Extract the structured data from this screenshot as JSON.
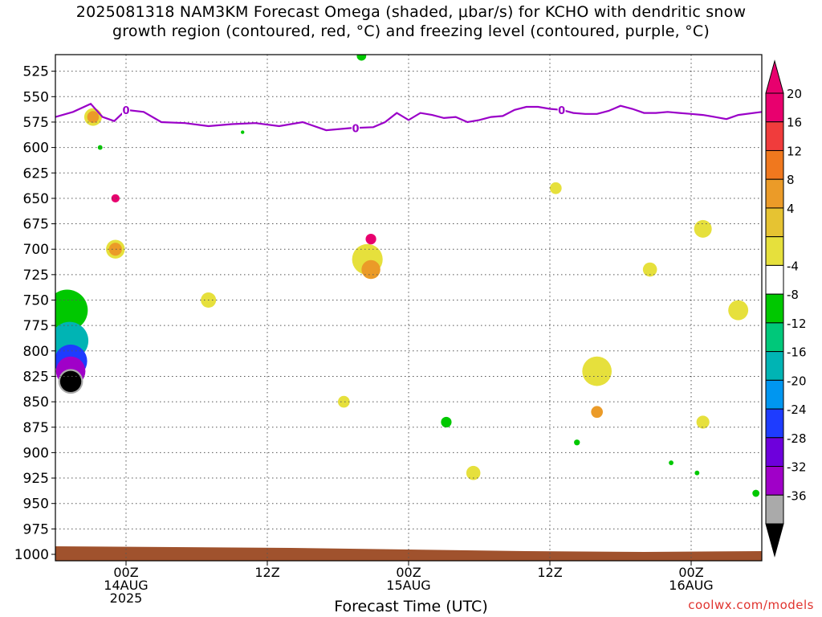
{
  "title_line1": "2025081318 NAM3KM Forecast Omega (shaded, μbar/s) for KCHO with dendritic snow",
  "title_line2": "growth region (contoured, red, °C) and freezing level (contoured, purple, °C)",
  "credit": "coolwx.com/models",
  "chart_data": {
    "type": "heatmap",
    "xlabel": "Forecast Time (UTC)",
    "x_ticks": [
      {
        "hour": 6,
        "lines": [
          "00Z",
          "14AUG",
          "2025"
        ]
      },
      {
        "hour": 18,
        "lines": [
          "12Z"
        ]
      },
      {
        "hour": 30,
        "lines": [
          "00Z",
          "15AUG"
        ]
      },
      {
        "hour": 42,
        "lines": [
          "12Z"
        ]
      },
      {
        "hour": 54,
        "lines": [
          "00Z",
          "16AUG"
        ]
      }
    ],
    "xlim": [
      0,
      60
    ],
    "ylabel": "",
    "y_ticks": [
      525,
      550,
      575,
      600,
      625,
      650,
      675,
      700,
      725,
      750,
      775,
      800,
      825,
      850,
      875,
      900,
      925,
      950,
      975,
      1000
    ],
    "ylim": [
      1000,
      500
    ],
    "grid": true,
    "colorbar": {
      "labels": [
        "20",
        "16",
        "12",
        "8",
        "4",
        "-4",
        "-8",
        "-12",
        "-16",
        "-20",
        "-24",
        "-28",
        "-32",
        "-36"
      ],
      "bins": [
        {
          "color": "#e8006e"
        },
        {
          "color": "#f03c3c"
        },
        {
          "color": "#f0781e"
        },
        {
          "color": "#eb9b28"
        },
        {
          "color": "#e6c332"
        },
        {
          "color": "#e6e03c"
        },
        {
          "color": "#ffffff"
        },
        {
          "color": "#00c800"
        },
        {
          "color": "#00c87a"
        },
        {
          "color": "#00b4b4"
        },
        {
          "color": "#0096f0"
        },
        {
          "color": "#1e3cff"
        },
        {
          "color": "#6e00dc"
        },
        {
          "color": "#a000c8"
        },
        {
          "color": "#aaaaaa"
        }
      ],
      "top_arrow_color": "#e8006e",
      "bottom_arrow_color": "#000000"
    },
    "colors": {
      "strong_up": "#e8006e",
      "up_orange": "#eb9b28",
      "up_light": "#e6e03c",
      "down_green": "#00c800",
      "extreme_down": "#000000",
      "freezing_line": "#9a00c8",
      "ground": "#a0522d"
    },
    "freezing_level": {
      "label": "0",
      "label_hours": [
        6,
        25.5,
        43
      ],
      "points": [
        [
          0,
          570
        ],
        [
          1.5,
          565
        ],
        [
          3,
          557
        ],
        [
          4,
          570
        ],
        [
          5,
          574
        ],
        [
          6,
          563
        ],
        [
          7.5,
          565
        ],
        [
          9,
          575
        ],
        [
          11,
          576
        ],
        [
          13,
          579
        ],
        [
          15,
          577
        ],
        [
          17,
          576
        ],
        [
          19,
          579
        ],
        [
          21,
          575
        ],
        [
          23,
          583
        ],
        [
          25,
          581
        ],
        [
          27,
          580
        ],
        [
          28,
          575
        ],
        [
          29,
          566
        ],
        [
          30,
          573
        ],
        [
          31,
          566
        ],
        [
          32,
          568
        ],
        [
          33,
          571
        ],
        [
          34,
          570
        ],
        [
          35,
          575
        ],
        [
          36,
          573
        ],
        [
          37,
          570
        ],
        [
          38,
          569
        ],
        [
          39,
          563
        ],
        [
          40,
          560
        ],
        [
          41,
          560
        ],
        [
          42,
          562
        ],
        [
          43,
          563
        ],
        [
          44,
          566
        ],
        [
          45,
          567
        ],
        [
          46,
          567
        ],
        [
          47,
          564
        ],
        [
          48,
          559
        ],
        [
          49,
          562
        ],
        [
          50,
          566
        ],
        [
          51,
          566
        ],
        [
          52,
          565
        ],
        [
          53,
          566
        ],
        [
          54,
          567
        ],
        [
          55,
          568
        ],
        [
          56,
          570
        ],
        [
          57,
          572
        ],
        [
          58,
          568
        ],
        [
          60,
          565
        ]
      ]
    },
    "omega_features": [
      {
        "bin": 5,
        "x": 3.2,
        "p": 570,
        "w": 1.5,
        "h": 400
      },
      {
        "bin": 3,
        "x": 3.2,
        "p": 570,
        "w": 1.0,
        "h": 320
      },
      {
        "bin": 5,
        "x": 5.1,
        "p": 700,
        "w": 1.6,
        "h": 560
      },
      {
        "bin": 3,
        "x": 5.1,
        "p": 700,
        "w": 1.1,
        "h": 470
      },
      {
        "bin": 0,
        "x": 5.1,
        "p": 650,
        "w": 0.7,
        "h": 280
      },
      {
        "bin": 5,
        "x": 13.0,
        "p": 750,
        "w": 1.3,
        "h": 160
      },
      {
        "bin": 5,
        "x": 24.5,
        "p": 850,
        "w": 1.0,
        "h": 220
      },
      {
        "bin": 5,
        "x": 26.5,
        "p": 710,
        "w": 2.6,
        "h": 560
      },
      {
        "bin": 3,
        "x": 26.8,
        "p": 720,
        "w": 1.6,
        "h": 520
      },
      {
        "bin": 0,
        "x": 26.8,
        "p": 690,
        "w": 0.9,
        "h": 410
      },
      {
        "bin": 5,
        "x": 35.5,
        "p": 920,
        "w": 1.2,
        "h": 60
      },
      {
        "bin": 5,
        "x": 42.5,
        "p": 640,
        "w": 1.0,
        "h": 120
      },
      {
        "bin": 5,
        "x": 46.0,
        "p": 820,
        "w": 2.5,
        "h": 330
      },
      {
        "bin": 3,
        "x": 46.0,
        "p": 860,
        "w": 1.0,
        "h": 200
      },
      {
        "bin": 5,
        "x": 50.5,
        "p": 720,
        "w": 1.2,
        "h": 190
      },
      {
        "bin": 5,
        "x": 55.0,
        "p": 870,
        "w": 1.1,
        "h": 260
      },
      {
        "bin": 5,
        "x": 55.0,
        "p": 680,
        "w": 1.5,
        "h": 110
      },
      {
        "bin": 5,
        "x": 58.0,
        "p": 760,
        "w": 1.7,
        "h": 280
      },
      {
        "bin": 7,
        "x": 0.3,
        "p": 760,
        "w": 0.8,
        "h": 420
      },
      {
        "bin": 7,
        "x": 1.0,
        "p": 760,
        "w": 3.5,
        "h": 480
      },
      {
        "bin": 9,
        "x": 1.2,
        "p": 790,
        "w": 3.2,
        "h": 400
      },
      {
        "bin": 11,
        "x": 1.3,
        "p": 810,
        "w": 2.8,
        "h": 340
      },
      {
        "bin": 13,
        "x": 1.3,
        "p": 820,
        "w": 2.5,
        "h": 310
      },
      {
        "bin": 14,
        "x": 1.3,
        "p": 830,
        "w": 2.1,
        "h": 300
      },
      {
        "bin": 99,
        "x": 1.3,
        "p": 830,
        "w": 1.8,
        "h": 300
      },
      {
        "bin": 7,
        "x": 3.8,
        "p": 600,
        "w": 0.4,
        "h": 90
      },
      {
        "bin": 7,
        "x": 15.9,
        "p": 585,
        "w": 0.3,
        "h": 75
      },
      {
        "bin": 7,
        "x": 26.0,
        "p": 510,
        "w": 0.8,
        "h": 50
      },
      {
        "bin": 7,
        "x": 33.2,
        "p": 870,
        "w": 0.9,
        "h": 150
      },
      {
        "bin": 7,
        "x": 44.3,
        "p": 890,
        "w": 0.5,
        "h": 70
      },
      {
        "bin": 7,
        "x": 52.3,
        "p": 910,
        "w": 0.4,
        "h": 80
      },
      {
        "bin": 7,
        "x": 54.5,
        "p": 920,
        "w": 0.4,
        "h": 80
      },
      {
        "bin": 7,
        "x": 59.5,
        "p": 940,
        "w": 0.6,
        "h": 60
      }
    ]
  }
}
